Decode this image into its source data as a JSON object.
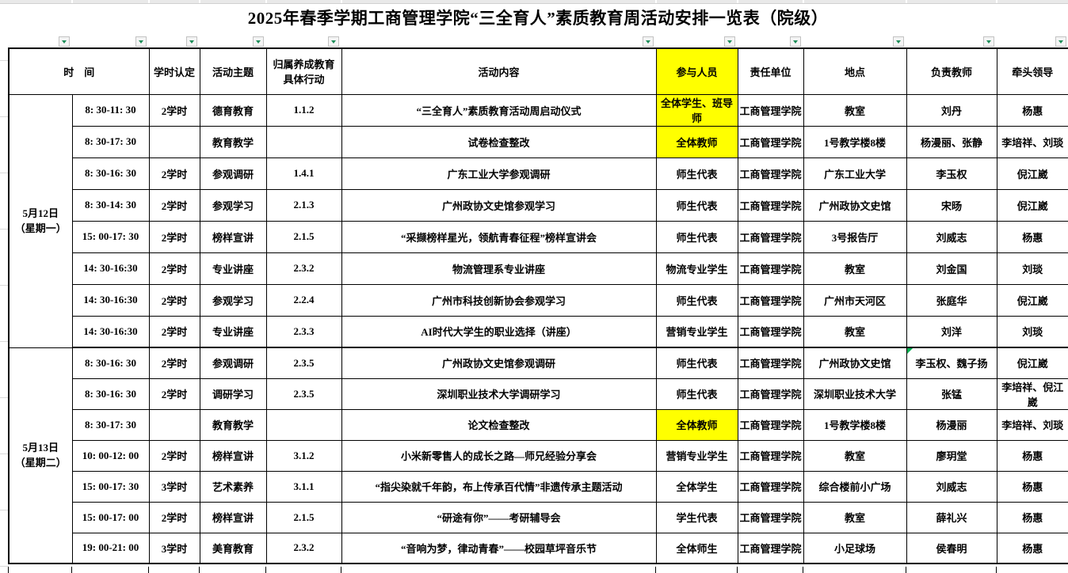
{
  "title": "2025年春季学期工商管理学院“三全育人”素质教育周活动安排一览表（院级）",
  "columns": {
    "time": "时　间",
    "hours": "学时认定",
    "theme": "活动主题",
    "code": "归属养成教育具体行动",
    "content": "活动内容",
    "participants": "参与人员",
    "unit": "责任单位",
    "location": "地点",
    "teacher": "负责教师",
    "leader": "牵头领导"
  },
  "colors": {
    "highlight_yellow": "#FFFF00",
    "filter_arrow_green": "#1E8E5A",
    "comment_marker_green": "#00B050"
  },
  "icons": {
    "filter_dropdown": "chevron-down"
  },
  "groups": [
    {
      "date": "5月12日\n（星期一）",
      "rows": [
        {
          "time": "8: 30-11: 30",
          "hours": "2学时",
          "theme": "德育教育",
          "code": "1.1.2",
          "content": "“三全育人”素质教育活动周启动仪式",
          "participants": "全体学生、班导师",
          "participants_highlight": true,
          "unit": "工商管理学院",
          "location": "教室",
          "teacher": "刘丹",
          "leader": "杨惠"
        },
        {
          "time": "8: 30-17: 30",
          "hours": "",
          "theme": "教育教学",
          "code": "",
          "content": "试卷检查整改",
          "participants": "全体教师",
          "participants_highlight": true,
          "unit": "工商管理学院",
          "location": "1号教学楼8楼",
          "teacher": "杨漫丽、张静",
          "leader": "李培祥、刘琰"
        },
        {
          "time": "8: 30-16: 30",
          "hours": "2学时",
          "theme": "参观调研",
          "code": "1.4.1",
          "content": "广东工业大学参观调研",
          "participants": "师生代表",
          "participants_highlight": false,
          "unit": "工商管理学院",
          "location": "广东工业大学",
          "teacher": "李玉权",
          "leader": "倪江崴"
        },
        {
          "time": "8: 30-14: 30",
          "hours": "2学时",
          "theme": "参观学习",
          "code": "2.1.3",
          "content": "广州政协文史馆参观学习",
          "participants": "师生代表",
          "participants_highlight": false,
          "unit": "工商管理学院",
          "location": "广州政协文史馆",
          "teacher": "宋旸",
          "leader": "倪江崴"
        },
        {
          "time": "15: 00-17: 30",
          "hours": "2学时",
          "theme": "榜样宣讲",
          "code": "2.1.5",
          "content": "“采撷榜样星光，领航青春征程”榜样宣讲会",
          "participants": "师生代表",
          "participants_highlight": false,
          "unit": "工商管理学院",
          "location": "3号报告厅",
          "teacher": "刘威志",
          "leader": "杨惠"
        },
        {
          "time": "14: 30-16:30",
          "hours": "2学时",
          "theme": "专业讲座",
          "code": "2.3.2",
          "content": "物流管理系专业讲座",
          "participants": "物流专业学生",
          "participants_highlight": false,
          "unit": "工商管理学院",
          "location": "教室",
          "teacher": "刘金国",
          "leader": "刘琰"
        },
        {
          "time": "14: 30-16:30",
          "hours": "2学时",
          "theme": "参观学习",
          "code": "2.2.4",
          "content": "广州市科技创新协会参观学习",
          "participants": "师生代表",
          "participants_highlight": false,
          "unit": "工商管理学院",
          "location": "广州市天河区",
          "teacher": "张庭华",
          "leader": "倪江崴"
        },
        {
          "time": "14: 30-16:30",
          "hours": "2学时",
          "theme": "专业讲座",
          "code": "2.3.3",
          "content": "AI时代大学生的职业选择（讲座）",
          "participants": "营销专业学生",
          "participants_highlight": false,
          "unit": "工商管理学院",
          "location": "教室",
          "teacher": "刘洋",
          "leader": "刘琰"
        }
      ]
    },
    {
      "date": "5月13日\n（星期二）",
      "rows": [
        {
          "time": "8: 30-16: 30",
          "hours": "2学时",
          "theme": "参观调研",
          "code": "2.3.5",
          "content": "广州政协文史馆参观调研",
          "participants": "师生代表",
          "participants_highlight": false,
          "unit": "工商管理学院",
          "location": "广州政协文史馆",
          "teacher": "李玉权、魏子扬",
          "teacher_note": true,
          "leader": "倪江崴"
        },
        {
          "time": "8: 30-16: 30",
          "hours": "2学时",
          "theme": "调研学习",
          "code": "2.3.5",
          "content": "深圳职业技术大学调研学习",
          "participants": "师生代表",
          "participants_highlight": false,
          "unit": "工商管理学院",
          "location": "深圳职业技术大学",
          "teacher": "张锰",
          "leader": "李培祥、倪江崴"
        },
        {
          "time": "8: 30-17: 30",
          "hours": "",
          "theme": "教育教学",
          "code": "",
          "content": "论文检查整改",
          "participants": "全体教师",
          "participants_highlight": true,
          "unit": "工商管理学院",
          "location": "1号教学楼8楼",
          "teacher": "杨漫丽",
          "leader": "李培祥、刘琰"
        },
        {
          "time": "10: 00-12: 00",
          "hours": "2学时",
          "theme": "榜样宣讲",
          "code": "3.1.2",
          "content": "小米新零售人的成长之路—师兄经验分享会",
          "participants": "营销专业学生",
          "participants_highlight": false,
          "unit": "工商管理学院",
          "location": "教室",
          "teacher": "廖玥堂",
          "leader": "杨惠"
        },
        {
          "time": "15: 00-17: 30",
          "hours": "3学时",
          "theme": "艺术素养",
          "code": "3.1.1",
          "content": "“指尖染就千年韵，布上传承百代情”非遗传承主题活动",
          "participants": "全体学生",
          "participants_highlight": false,
          "unit": "工商管理学院",
          "location": "综合楼前小广场",
          "teacher": "刘威志",
          "leader": "杨惠"
        },
        {
          "time": "15: 00-17: 00",
          "hours": "2学时",
          "theme": "榜样宣讲",
          "code": "2.1.5",
          "content": "“研途有你”——考研辅导会",
          "participants": "学生代表",
          "participants_highlight": false,
          "unit": "工商管理学院",
          "location": "教室",
          "teacher": "薛礼兴",
          "leader": "杨惠"
        },
        {
          "time": "19: 00-21: 00",
          "hours": "3学时",
          "theme": "美育教育",
          "code": "2.3.2",
          "content": "“音响为梦，律动青春”——校园草坪音乐节",
          "participants": "全体师生",
          "participants_highlight": false,
          "unit": "工商管理学院",
          "location": "小足球场",
          "teacher": "侯春明",
          "leader": "杨惠"
        }
      ]
    }
  ]
}
